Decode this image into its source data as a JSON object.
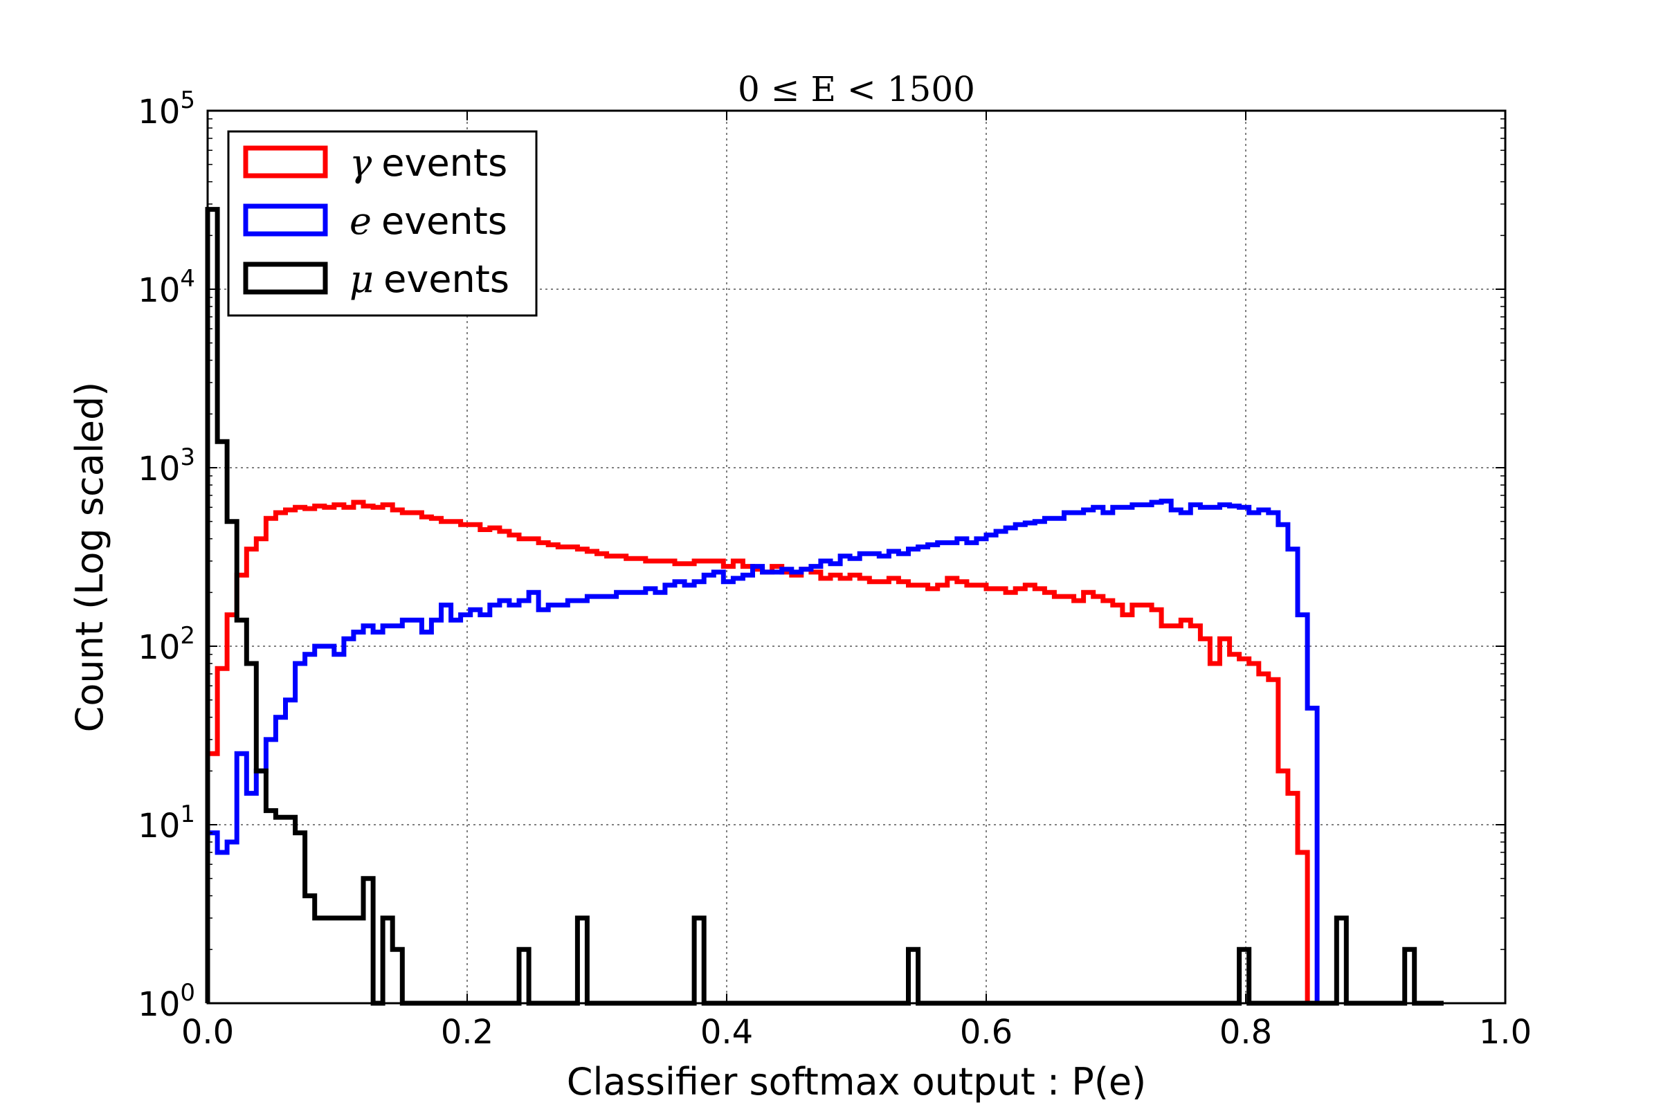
{
  "chart_data": {
    "type": "histogram",
    "title": "0 ≤ E < 1500",
    "xlabel": "Classifier softmax output : P(e)",
    "ylabel": "Count (Log scaled)",
    "xlim": [
      0.0,
      1.0
    ],
    "ylim": [
      1,
      100000
    ],
    "yscale": "log",
    "grid": true,
    "legend_position": "top-left",
    "x_ticks": [
      "0.0",
      "0.2",
      "0.4",
      "0.6",
      "0.8",
      "1.0"
    ],
    "x_tick_values": [
      0.0,
      0.2,
      0.4,
      0.6,
      0.8,
      1.0
    ],
    "y_ticks": [
      {
        "base": "10",
        "exp": "0",
        "value": 1
      },
      {
        "base": "10",
        "exp": "1",
        "value": 10
      },
      {
        "base": "10",
        "exp": "2",
        "value": 100
      },
      {
        "base": "10",
        "exp": "3",
        "value": 1000
      },
      {
        "base": "10",
        "exp": "4",
        "value": 10000
      },
      {
        "base": "10",
        "exp": "5",
        "value": 100000
      }
    ],
    "bin_width": 0.0075,
    "series": [
      {
        "name": "γ events",
        "symbol": "γ",
        "label": "events",
        "color": "#ff0000",
        "values": [
          25,
          75,
          150,
          250,
          350,
          400,
          520,
          560,
          580,
          600,
          590,
          610,
          600,
          620,
          600,
          640,
          610,
          600,
          620,
          580,
          560,
          560,
          530,
          520,
          500,
          500,
          480,
          480,
          450,
          460,
          440,
          420,
          400,
          400,
          380,
          370,
          360,
          360,
          350,
          340,
          330,
          320,
          320,
          310,
          310,
          300,
          300,
          300,
          290,
          290,
          300,
          300,
          300,
          280,
          300,
          280,
          270,
          260,
          280,
          260,
          250,
          270,
          260,
          240,
          250,
          240,
          250,
          240,
          230,
          230,
          240,
          230,
          220,
          220,
          210,
          220,
          240,
          230,
          220,
          220,
          210,
          210,
          200,
          210,
          220,
          210,
          200,
          190,
          190,
          180,
          200,
          190,
          180,
          170,
          150,
          170,
          170,
          160,
          130,
          130,
          140,
          130,
          110,
          80,
          110,
          90,
          85,
          80,
          70,
          65,
          20,
          15,
          7,
          1
        ]
      },
      {
        "name": "e events",
        "symbol": "e",
        "label": "events",
        "color": "#0000ff",
        "values": [
          9,
          7,
          8,
          25,
          15,
          20,
          30,
          40,
          50,
          80,
          90,
          100,
          100,
          90,
          110,
          120,
          130,
          120,
          130,
          130,
          140,
          140,
          120,
          140,
          170,
          140,
          150,
          160,
          150,
          170,
          180,
          170,
          180,
          200,
          160,
          170,
          170,
          180,
          180,
          190,
          190,
          190,
          200,
          200,
          200,
          210,
          200,
          220,
          230,
          220,
          230,
          250,
          260,
          230,
          240,
          250,
          280,
          260,
          260,
          270,
          260,
          270,
          280,
          300,
          290,
          320,
          310,
          330,
          330,
          320,
          340,
          330,
          350,
          360,
          370,
          380,
          380,
          400,
          380,
          400,
          420,
          440,
          460,
          480,
          490,
          500,
          520,
          520,
          560,
          560,
          580,
          600,
          560,
          600,
          600,
          620,
          620,
          640,
          650,
          580,
          560,
          620,
          600,
          600,
          620,
          610,
          600,
          560,
          580,
          560,
          480,
          350,
          150,
          45,
          1
        ]
      },
      {
        "name": "μ events",
        "symbol": "μ",
        "label": "events",
        "color": "#000000",
        "values": [
          28000,
          1400,
          500,
          140,
          80,
          20,
          12,
          11,
          11,
          9,
          4,
          3,
          3,
          3,
          3,
          3,
          5,
          1,
          3,
          2,
          1,
          1,
          1,
          1,
          1,
          1,
          1,
          1,
          1,
          1,
          1,
          1,
          2,
          1,
          1,
          1,
          1,
          1,
          3,
          1,
          1,
          1,
          1,
          1,
          1,
          1,
          1,
          1,
          1,
          1,
          3,
          1,
          1,
          1,
          1,
          1,
          1,
          1,
          1,
          1,
          1,
          1,
          1,
          1,
          1,
          1,
          1,
          1,
          1,
          1,
          1,
          1,
          2,
          1,
          1,
          1,
          1,
          1,
          1,
          1,
          1,
          1,
          1,
          1,
          1,
          1,
          1,
          1,
          1,
          1,
          1,
          1,
          1,
          1,
          1,
          1,
          1,
          1,
          1,
          1,
          1,
          1,
          1,
          1,
          1,
          1,
          2,
          1,
          1,
          1,
          1,
          1,
          1,
          1,
          1,
          1,
          3,
          1,
          1,
          1,
          1,
          1,
          1,
          2,
          1,
          1,
          1
        ]
      }
    ]
  }
}
